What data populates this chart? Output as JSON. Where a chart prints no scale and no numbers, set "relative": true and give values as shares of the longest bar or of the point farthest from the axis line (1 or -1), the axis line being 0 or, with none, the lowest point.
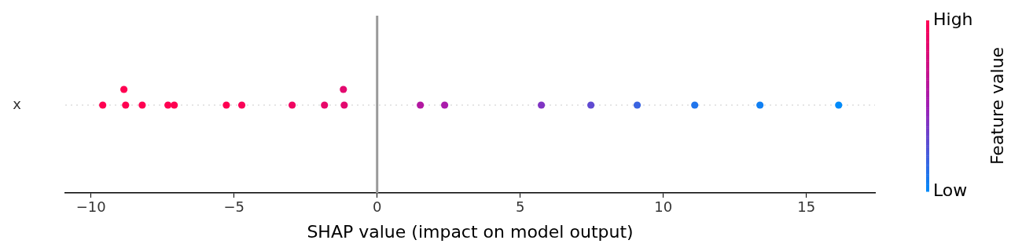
{
  "chart_data": {
    "type": "scatter",
    "xlabel": "SHAP value (impact on model output)",
    "clabel": "Feature value",
    "x": [
      -9.59,
      -8.85,
      -8.79,
      -8.21,
      -7.31,
      -7.09,
      -5.27,
      -4.73,
      -2.97,
      -1.84,
      -1.18,
      -1.15,
      1.51,
      2.36,
      5.74,
      7.47,
      9.09,
      11.1,
      13.38,
      16.13
    ],
    "values": [
      0,
      1,
      0,
      0,
      0,
      0,
      0,
      0,
      0,
      0,
      1,
      0,
      0,
      0,
      0,
      0,
      0,
      0,
      0,
      0
    ],
    "relative": true,
    "annotations": [
      "x"
    ],
    "cvalues": [
      1,
      1,
      1,
      1,
      1,
      1,
      1,
      0.97,
      0.92,
      0.88,
      0.85,
      0.85,
      0.6,
      0.55,
      0.4,
      0.3,
      0.18,
      0.1,
      0.05,
      0
    ],
    "clim": [
      0,
      1
    ],
    "cticks": [
      {
        "value": 0,
        "label": "Low"
      },
      {
        "value": 1,
        "label": "High"
      }
    ],
    "xlim": [
      -10.9,
      17.4
    ],
    "xticks": [
      {
        "value": -10,
        "label": "−10"
      },
      {
        "value": -5,
        "label": "−5"
      },
      0,
      5,
      10,
      15
    ],
    "ref_lines": [
      {
        "axis": "x",
        "value": 0,
        "color": "#999999",
        "line_style": "solid"
      },
      {
        "axis": "y",
        "value": 0,
        "color": "#cccccc",
        "line_style": "dotted"
      }
    ],
    "marker": "circle",
    "grid": false,
    "legend": false
  }
}
